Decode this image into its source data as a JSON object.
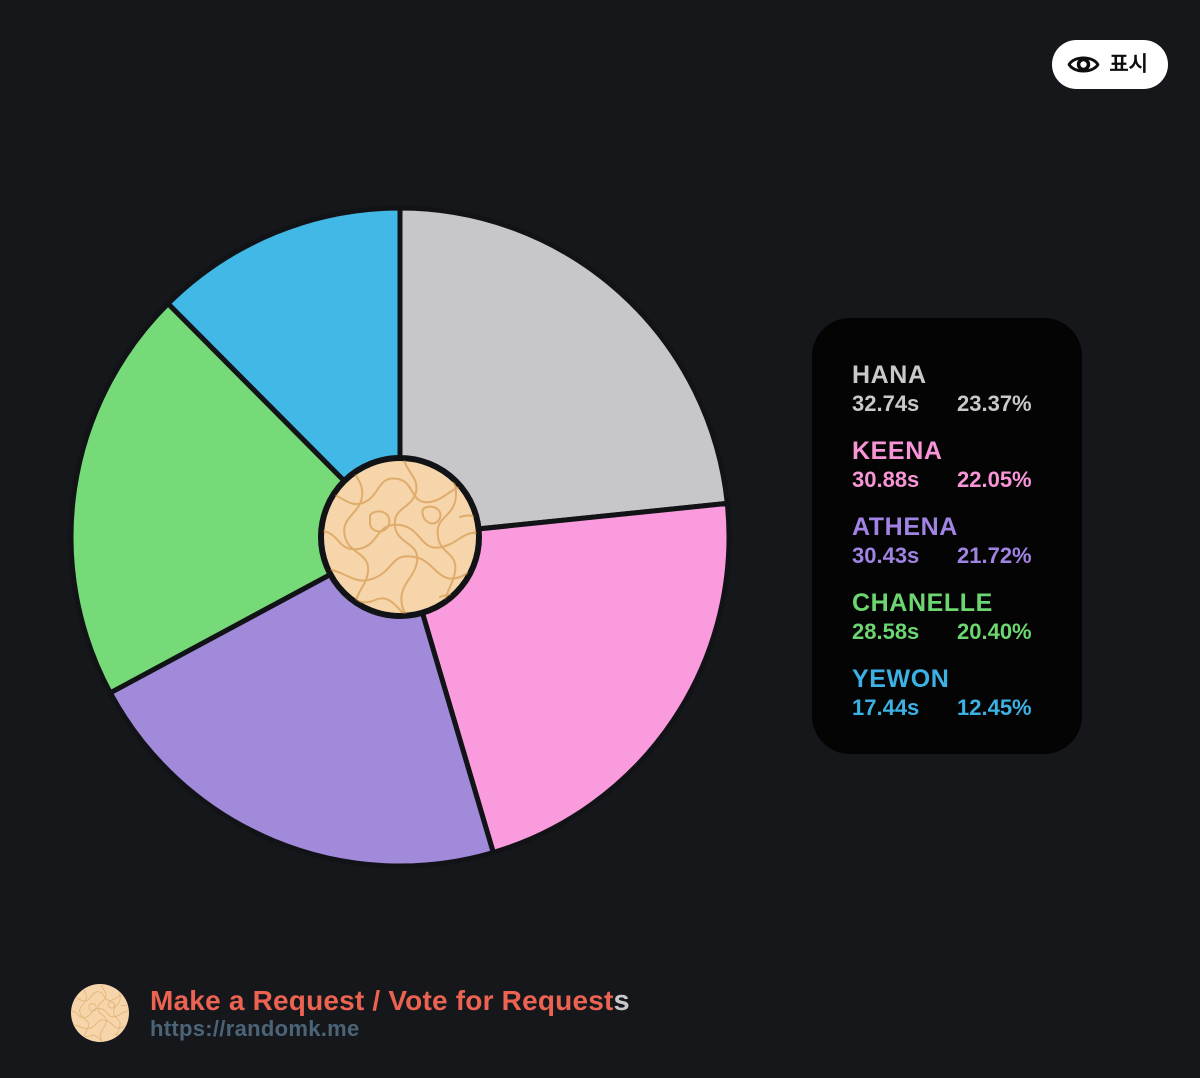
{
  "page": {
    "background": "#16171b"
  },
  "header": {
    "visibility_button": {
      "label": "표시",
      "icon": "eye",
      "background": "#ffffff",
      "text_color": "#0d0d0d"
    }
  },
  "chart_data": {
    "type": "pie",
    "title": "",
    "legend_position": "right",
    "direction": "clockwise",
    "start_angle_deg": 0,
    "stroke_color": "#121317",
    "categories": [
      "HANA",
      "KEENA",
      "ATHENA",
      "CHANELLE",
      "YEWON"
    ],
    "series": [
      {
        "name": "HANA",
        "seconds": 32.74,
        "percent": 23.37,
        "color": "#c7c7c9"
      },
      {
        "name": "KEENA",
        "seconds": 30.88,
        "percent": 22.05,
        "color": "#f99bdc"
      },
      {
        "name": "ATHENA",
        "seconds": 30.43,
        "percent": 21.72,
        "color": "#a18ad9"
      },
      {
        "name": "CHANELLE",
        "seconds": 28.58,
        "percent": 20.4,
        "color": "#77da78"
      },
      {
        "name": "YEWON",
        "seconds": 17.44,
        "percent": 12.45,
        "color": "#41b8e5"
      }
    ],
    "donut_center": {
      "fill": "#f5d5a9",
      "texture_line_color": "#cd8a3b",
      "border_color": "#121317",
      "radius_ratio": 0.24
    }
  },
  "legend": {
    "panel_background": "#040405",
    "members": [
      {
        "name": "HANA",
        "time": "32.74s",
        "percent": "23.37%",
        "color": "#c9c9cb"
      },
      {
        "name": "KEENA",
        "time": "30.88s",
        "percent": "22.05%",
        "color": "#f895d6"
      },
      {
        "name": "ATHENA",
        "time": "30.43s",
        "percent": "21.72%",
        "color": "#a083e2"
      },
      {
        "name": "CHANELLE",
        "time": "28.58s",
        "percent": "20.40%",
        "color": "#6cd671"
      },
      {
        "name": "YEWON",
        "time": "17.44s",
        "percent": "12.45%",
        "color": "#3bb1e4"
      }
    ]
  },
  "footer": {
    "title": "Make a Request / Vote for Request",
    "title_suffix": "s",
    "url": "https://randomk.me",
    "title_color": "#ed6352",
    "suffix_color": "#c9c9cb",
    "url_color": "#4b6478",
    "avatar_fill": "#f5d5a9"
  }
}
